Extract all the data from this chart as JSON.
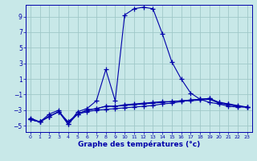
{
  "title": "",
  "xlabel": "Graphe des températures (°c)",
  "xlim": [
    -0.5,
    23.5
  ],
  "ylim": [
    -5.8,
    10.5
  ],
  "yticks": [
    -5,
    -3,
    -1,
    1,
    3,
    5,
    7,
    9
  ],
  "xticks": [
    0,
    1,
    2,
    3,
    4,
    5,
    6,
    7,
    8,
    9,
    10,
    11,
    12,
    13,
    14,
    15,
    16,
    17,
    18,
    19,
    20,
    21,
    22,
    23
  ],
  "bg_color": "#c8e8e8",
  "grid_color": "#a0c8c8",
  "line_color": "#0000aa",
  "line1_x": [
    0,
    1,
    2,
    3,
    4,
    5,
    6,
    7,
    8,
    9,
    10,
    11,
    12,
    13,
    14,
    15,
    16,
    17,
    18,
    19,
    20,
    21,
    22,
    23
  ],
  "line1_y": [
    -4.0,
    -4.5,
    -3.5,
    -3.0,
    -4.8,
    -3.2,
    -2.8,
    -1.8,
    2.2,
    -1.8,
    9.2,
    10.0,
    10.2,
    10.0,
    6.8,
    3.2,
    1.0,
    -0.8,
    -1.6,
    -2.0,
    -2.2,
    -2.5,
    -2.6,
    -2.6
  ],
  "line2_x": [
    0,
    1,
    2,
    3,
    4,
    5,
    6,
    7,
    8,
    9,
    10,
    11,
    12,
    13,
    14,
    15,
    16,
    17,
    18,
    19,
    20,
    21,
    22,
    23
  ],
  "line2_y": [
    -4.2,
    -4.5,
    -3.8,
    -3.2,
    -4.8,
    -3.5,
    -3.0,
    -2.8,
    -2.5,
    -2.5,
    -2.4,
    -2.3,
    -2.2,
    -2.1,
    -2.0,
    -1.9,
    -1.8,
    -1.7,
    -1.6,
    -1.5,
    -2.0,
    -2.2,
    -2.4,
    -2.6
  ],
  "line3_x": [
    0,
    1,
    2,
    3,
    4,
    5,
    6,
    7,
    8,
    9,
    10,
    11,
    12,
    13,
    14,
    15,
    16,
    17,
    18,
    19,
    20,
    21,
    22,
    23
  ],
  "line3_y": [
    -4.2,
    -4.5,
    -3.8,
    -3.2,
    -4.5,
    -3.5,
    -3.0,
    -2.8,
    -2.5,
    -2.5,
    -2.3,
    -2.2,
    -2.1,
    -2.0,
    -1.9,
    -1.9,
    -1.8,
    -1.8,
    -1.7,
    -1.6,
    -2.1,
    -2.3,
    -2.5,
    -2.6
  ],
  "line4_x": [
    0,
    1,
    2,
    3,
    4,
    5,
    6,
    7,
    8,
    9,
    10,
    11,
    12,
    13,
    14,
    15,
    16,
    17,
    18,
    19,
    20,
    21,
    22,
    23
  ],
  "line4_y": [
    -4.2,
    -4.5,
    -3.8,
    -3.2,
    -4.5,
    -3.5,
    -3.2,
    -3.0,
    -2.9,
    -2.8,
    -2.7,
    -2.6,
    -2.5,
    -2.4,
    -2.2,
    -2.1,
    -1.9,
    -1.7,
    -1.6,
    -1.5,
    -2.0,
    -2.2,
    -2.5,
    -2.6
  ]
}
